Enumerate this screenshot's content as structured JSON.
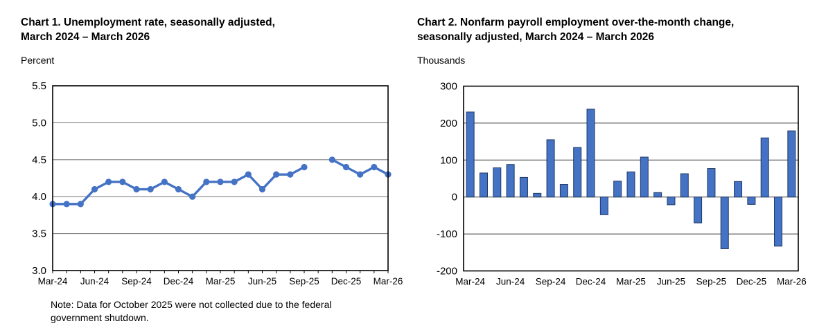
{
  "chart1": {
    "title": "Chart 1. Unemployment rate, seasonally adjusted,\nMarch 2024 – March 2026",
    "unit_label": "Percent",
    "note": "Note: Data for October 2025 were not collected due to the federal\ngovernment shutdown."
  },
  "chart2": {
    "title": "Chart 2. Nonfarm payroll employment over-the-month change,\nseasonally adjusted, March 2024 – March 2026",
    "unit_label": "Thousands"
  },
  "chart_data": [
    {
      "type": "line",
      "title": "Chart 1. Unemployment rate, seasonally adjusted, March 2024 – March 2026",
      "ylabel": "Percent",
      "xlabel": "",
      "categories": [
        "Mar-24",
        "Apr-24",
        "May-24",
        "Jun-24",
        "Jul-24",
        "Aug-24",
        "Sep-24",
        "Oct-24",
        "Nov-24",
        "Dec-24",
        "Jan-25",
        "Feb-25",
        "Mar-25",
        "Apr-25",
        "May-25",
        "Jun-25",
        "Jul-25",
        "Aug-25",
        "Sep-25",
        "Oct-25",
        "Nov-25",
        "Dec-25",
        "Jan-26",
        "Feb-26",
        "Mar-26"
      ],
      "values": [
        3.9,
        3.9,
        3.9,
        4.1,
        4.2,
        4.2,
        4.1,
        4.1,
        4.2,
        4.1,
        4.0,
        4.2,
        4.2,
        4.2,
        4.3,
        4.1,
        4.3,
        4.3,
        4.4,
        null,
        4.5,
        4.4,
        4.3,
        4.4,
        4.3
      ],
      "missing_category": "Oct-25",
      "ylim": [
        3.0,
        5.5
      ],
      "yticks": [
        3.0,
        3.5,
        4.0,
        4.5,
        5.0,
        5.5
      ],
      "ytick_labels": [
        "3.0",
        "3.5",
        "4.0",
        "4.5",
        "5.0",
        "5.5"
      ],
      "xtick_labels": [
        "Mar-24",
        "Jun-24",
        "Sep-24",
        "Dec-24",
        "Mar-25",
        "Jun-25",
        "Sep-25",
        "Dec-25",
        "Mar-26"
      ],
      "xtick_every": 3,
      "grid": true,
      "legend": "none",
      "line_color": "#4472C4",
      "marker": "circle",
      "note": "Note: Data for October 2025 were not collected due to the federal government shutdown."
    },
    {
      "type": "bar",
      "title": "Chart 2. Nonfarm payroll employment over-the-month change, seasonally adjusted, March 2024 – March 2026",
      "ylabel": "Thousands",
      "xlabel": "",
      "categories": [
        "Mar-24",
        "Apr-24",
        "May-24",
        "Jun-24",
        "Jul-24",
        "Aug-24",
        "Sep-24",
        "Oct-24",
        "Nov-24",
        "Dec-24",
        "Jan-25",
        "Feb-25",
        "Mar-25",
        "Apr-25",
        "May-25",
        "Jun-25",
        "Jul-25",
        "Aug-25",
        "Sep-25",
        "Oct-25",
        "Nov-25",
        "Dec-25",
        "Jan-26",
        "Feb-26",
        "Mar-26"
      ],
      "values": [
        230,
        65,
        79,
        88,
        53,
        10,
        155,
        34,
        134,
        238,
        -48,
        43,
        68,
        108,
        12,
        -21,
        63,
        -70,
        77,
        -140,
        42,
        -20,
        160,
        -133,
        179
      ],
      "ylim": [
        -200,
        300
      ],
      "yticks": [
        -200,
        -100,
        0,
        100,
        200,
        300
      ],
      "ytick_labels": [
        "-200",
        "-100",
        "0",
        "100",
        "200",
        "300"
      ],
      "xtick_labels": [
        "Mar-24",
        "Jun-24",
        "Sep-24",
        "Dec-24",
        "Mar-25",
        "Jun-25",
        "Sep-25",
        "Dec-25",
        "Mar-26"
      ],
      "xtick_every": 3,
      "grid": true,
      "legend": "none",
      "bar_color": "#4472C4",
      "bar_border_color": "#203864"
    }
  ]
}
